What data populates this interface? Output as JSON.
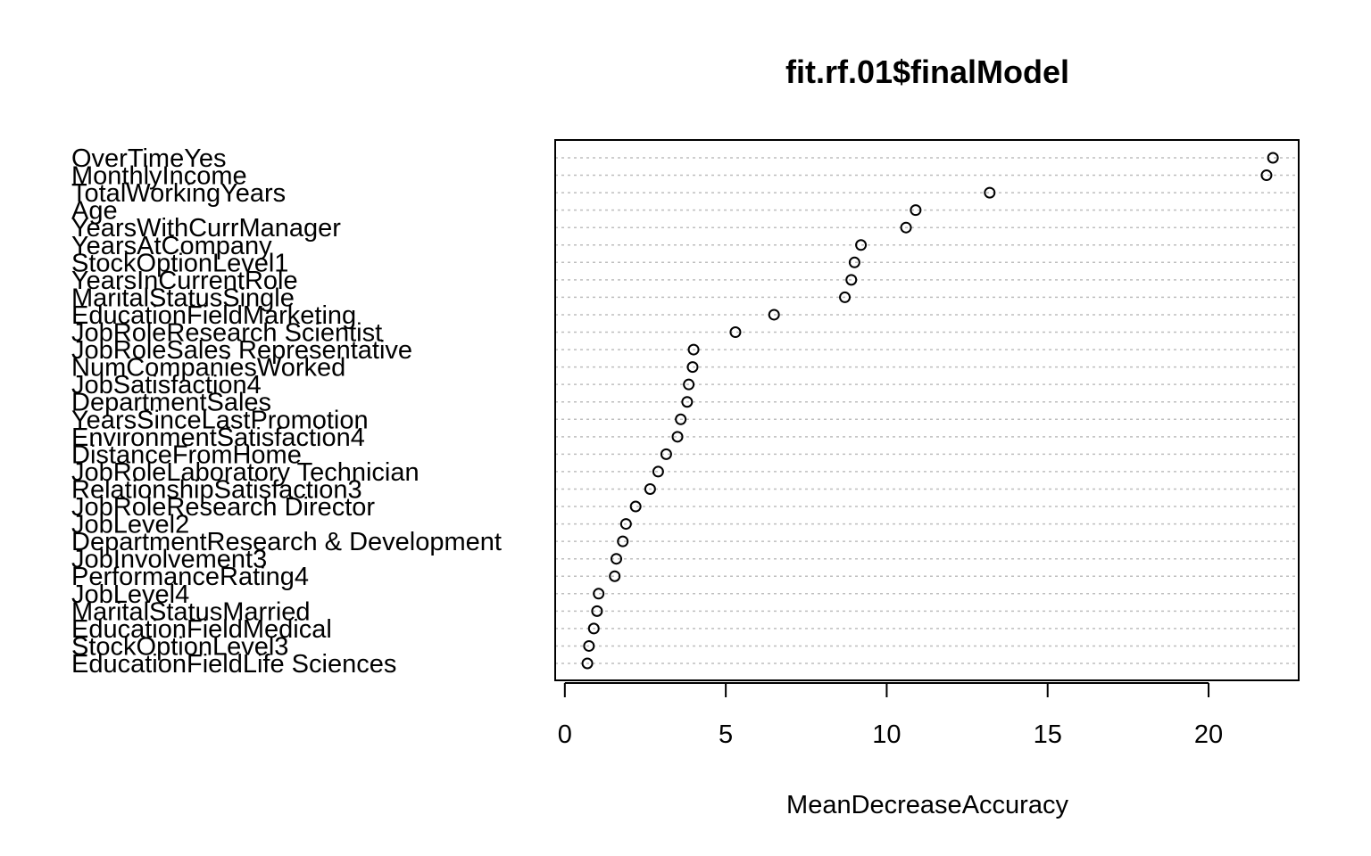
{
  "chart_data": {
    "type": "scatter",
    "title": "fit.rf.01$finalModel",
    "xlabel": "MeanDecreaseAccuracy",
    "ylabel": "",
    "xlim": [
      -0.3,
      22.8
    ],
    "xticks": [
      0,
      5,
      10,
      15,
      20
    ],
    "grid": true,
    "legend": "none",
    "categories": [
      "OverTimeYes",
      "MonthlyIncome",
      "TotalWorkingYears",
      "Age",
      "YearsWithCurrManager",
      "YearsAtCompany",
      "StockOptionLevel1",
      "YearsInCurrentRole",
      "MaritalStatusSingle",
      "EducationFieldMarketing",
      "JobRoleResearch Scientist",
      "JobRoleSales Representative",
      "NumCompaniesWorked",
      "JobSatisfaction4",
      "DepartmentSales",
      "YearsSinceLastPromotion",
      "EnvironmentSatisfaction4",
      "DistanceFromHome",
      "JobRoleLaboratory Technician",
      "RelationshipSatisfaction3",
      "JobRoleResearch Director",
      "JobLevel2",
      "DepartmentResearch & Development",
      "JobInvolvement3",
      "PerformanceRating4",
      "JobLevel4",
      "MaritalStatusMarried",
      "EducationFieldMedical",
      "StockOptionLevel3",
      "EducationFieldLife Sciences"
    ],
    "values": [
      22.0,
      21.8,
      13.2,
      10.9,
      10.6,
      9.2,
      9.0,
      8.9,
      8.7,
      6.5,
      5.3,
      4.0,
      3.97,
      3.85,
      3.8,
      3.6,
      3.5,
      3.15,
      2.9,
      2.65,
      2.2,
      1.9,
      1.8,
      1.6,
      1.55,
      1.05,
      1.0,
      0.9,
      0.75,
      0.7
    ]
  }
}
